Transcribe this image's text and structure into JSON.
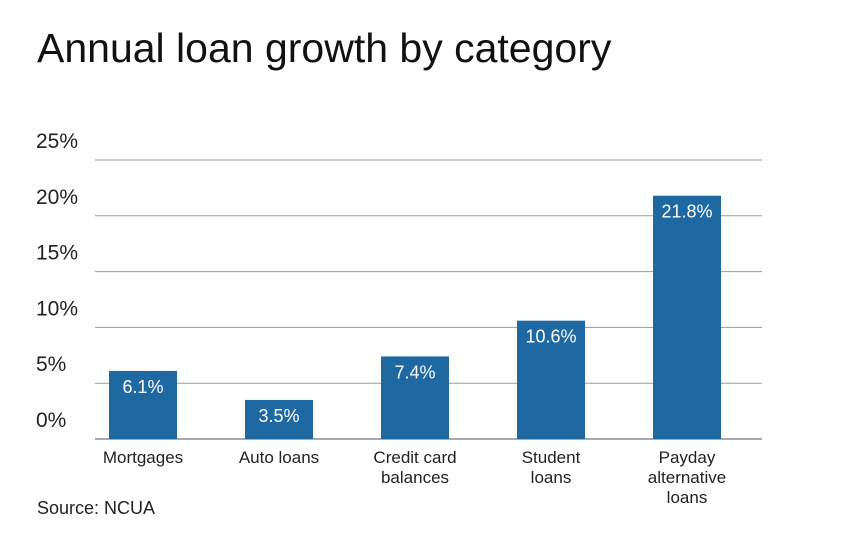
{
  "chart_data": {
    "type": "bar",
    "title": "Annual loan growth by category",
    "categories": [
      "Mortgages",
      "Auto loans",
      "Credit card\nbalances",
      "Student\nloans",
      "Payday\nalternative\nloans"
    ],
    "values": [
      6.1,
      3.5,
      7.4,
      10.6,
      21.8
    ],
    "value_labels": [
      "6.1%",
      "3.5%",
      "7.4%",
      "10.6%",
      "21.8%"
    ],
    "color": "#1f69a3",
    "ylim": [
      0,
      25
    ],
    "yticks": [
      {
        "value": 0,
        "label": "0%"
      },
      {
        "value": 5,
        "label": "5%"
      },
      {
        "value": 10,
        "label": "10%"
      },
      {
        "value": 15,
        "label": "15%"
      },
      {
        "value": 20,
        "label": "20%"
      },
      {
        "value": 25,
        "label": "25%"
      }
    ],
    "grid": true,
    "source": "Source: NCUA"
  }
}
